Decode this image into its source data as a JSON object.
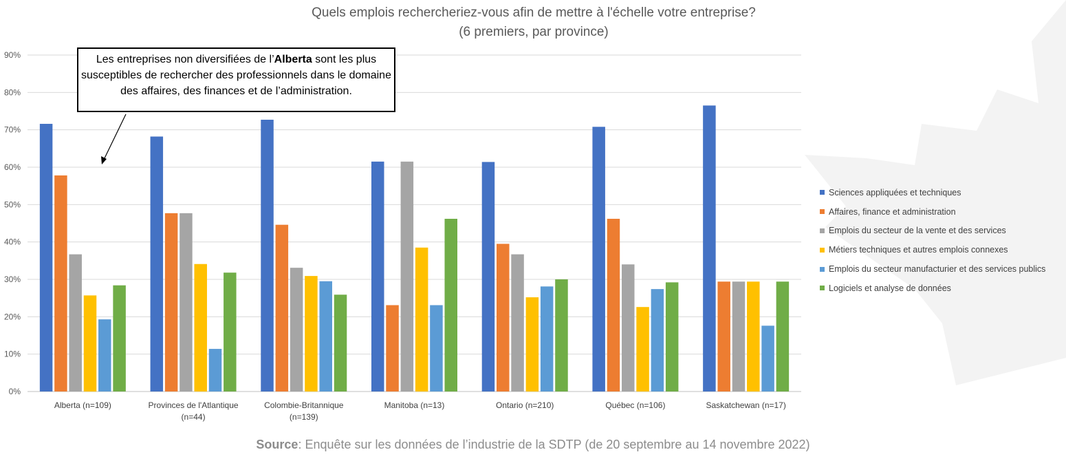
{
  "chart_data": {
    "type": "bar",
    "title": "Quels emplois rechercheriez-vous afin de mettre à l'échelle votre entreprise?",
    "subtitle": "(6 premiers, par province)",
    "xlabel": "",
    "ylabel": "",
    "ylim": [
      0,
      90
    ],
    "yticks": [
      "0%",
      "10%",
      "20%",
      "30%",
      "40%",
      "50%",
      "60%",
      "70%",
      "80%",
      "90%"
    ],
    "grid": true,
    "legend_position": "right",
    "categories": [
      [
        "Alberta (n=109)"
      ],
      [
        "Provinces de l'Atlantique",
        "(n=44)"
      ],
      [
        "Colombie-Britannique",
        "(n=139)"
      ],
      [
        "Manitoba (n=13)"
      ],
      [
        "Ontario (n=210)"
      ],
      [
        "Québec (n=106)"
      ],
      [
        "Saskatchewan (n=17)"
      ]
    ],
    "series": [
      {
        "name": "Sciences appliquées et techniques",
        "color": "#4472c4",
        "values": [
          71.6,
          68.2,
          72.7,
          61.5,
          61.4,
          70.8,
          76.5
        ]
      },
      {
        "name": "Affaires, finance et administration",
        "color": "#ed7d31",
        "values": [
          57.8,
          47.7,
          44.6,
          23.1,
          39.5,
          46.2,
          29.4
        ]
      },
      {
        "name": "Emplois du secteur de la vente et des services",
        "color": "#a5a5a5",
        "values": [
          36.7,
          47.7,
          33.1,
          61.5,
          36.7,
          34.0,
          29.4
        ]
      },
      {
        "name": "Métiers techniques et autres emplois connexes",
        "color": "#ffc000",
        "values": [
          25.7,
          34.1,
          30.9,
          38.5,
          25.2,
          22.6,
          29.4
        ]
      },
      {
        "name": "Emplois du secteur manufacturier et des services publics",
        "color": "#5b9bd5",
        "values": [
          19.3,
          11.4,
          29.5,
          23.1,
          28.1,
          27.4,
          17.6
        ]
      },
      {
        "name": "Logiciels et analyse de données",
        "color": "#70ad47",
        "values": [
          28.4,
          31.8,
          25.9,
          46.2,
          30.0,
          29.2,
          29.4
        ]
      }
    ],
    "annotation": {
      "pre": "Les entreprises non diversifiées de l’",
      "bold": "Alberta",
      "post": " sont les plus susceptibles de rechercher des professionnels dans le domaine des affaires, des finances et de l’administration."
    }
  },
  "source": {
    "label": "Source",
    "text": ": Enquête sur les données de l’industrie de la SDTP (de 20 septembre au 14 novembre 2022)"
  }
}
